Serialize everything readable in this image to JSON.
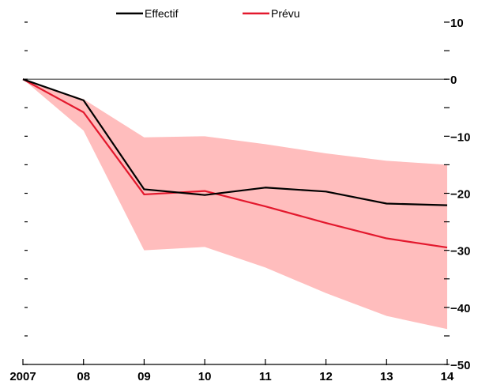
{
  "chart_data": {
    "type": "line",
    "title": "",
    "xlabel": "",
    "ylabel": "",
    "x": [
      2007,
      2008,
      2009,
      2010,
      2011,
      2012,
      2013,
      2014
    ],
    "x_tick_labels": [
      "2007",
      "08",
      "09",
      "10",
      "11",
      "12",
      "13",
      "14"
    ],
    "ylim": [
      -50,
      10
    ],
    "y_ticks": [
      10,
      0,
      -10,
      -20,
      -30,
      -40,
      -50
    ],
    "y_tick_labels": [
      "10",
      "0",
      "−10",
      "−20",
      "−30",
      "−40",
      "−50"
    ],
    "y_axis_side": "right",
    "legend_position": "top",
    "series": [
      {
        "name": "Effectif",
        "color": "#000000",
        "values": [
          0,
          -3.7,
          -19.3,
          -20.3,
          -19.0,
          -19.7,
          -21.8,
          -22.1
        ]
      },
      {
        "name": "Prévu",
        "color": "#e3182d",
        "values": [
          0,
          -5.8,
          -20.2,
          -19.6,
          -22.3,
          -25.2,
          -27.9,
          -29.5
        ]
      }
    ],
    "band": {
      "color": "#ffbdbd",
      "upper": [
        0,
        -3.5,
        -10.2,
        -10.0,
        -11.4,
        -13.0,
        -14.3,
        -15.0
      ],
      "lower": [
        0,
        -9.0,
        -30.0,
        -29.4,
        -33.0,
        -37.5,
        -41.5,
        -43.8
      ]
    },
    "zero_line": true,
    "grid": false
  }
}
